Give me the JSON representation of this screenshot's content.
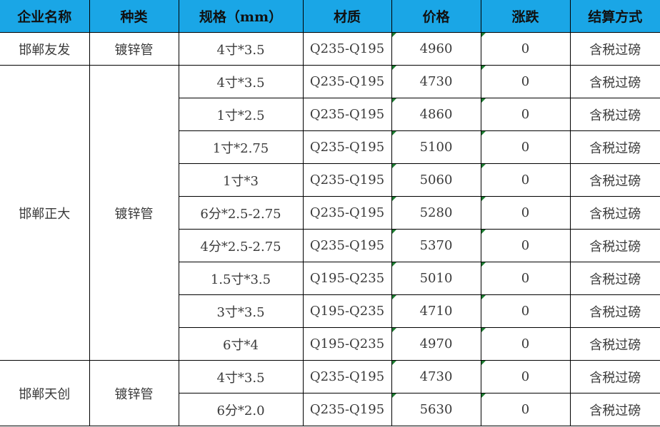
{
  "headers": [
    "企业名称",
    "种类",
    "规格（mm）",
    "材质",
    "价格",
    "涨跌",
    "结算方式"
  ],
  "groups": [
    {
      "company": "邯郸友发",
      "type": "镀锌管",
      "rows": [
        {
          "spec": "4寸*3.5",
          "material": "Q235-Q195",
          "price": "4960",
          "change": "0",
          "settlement": "含税过磅"
        }
      ]
    },
    {
      "company": "邯郸正大",
      "type": "镀锌管",
      "rows": [
        {
          "spec": "4寸*3.5",
          "material": "Q235-Q195",
          "price": "4730",
          "change": "0",
          "settlement": "含税过磅"
        },
        {
          "spec": "1寸*2.5",
          "material": "Q235-Q195",
          "price": "4860",
          "change": "0",
          "settlement": "含税过磅"
        },
        {
          "spec": "1寸*2.75",
          "material": "Q235-Q195",
          "price": "5100",
          "change": "0",
          "settlement": "含税过磅"
        },
        {
          "spec": "1寸*3",
          "material": "Q235-Q195",
          "price": "5060",
          "change": "0",
          "settlement": "含税过磅"
        },
        {
          "spec": "6分*2.5-2.75",
          "material": "Q235-Q195",
          "price": "5280",
          "change": "0",
          "settlement": "含税过磅"
        },
        {
          "spec": "4分*2.5-2.75",
          "material": "Q235-Q195",
          "price": "5370",
          "change": "0",
          "settlement": "含税过磅"
        },
        {
          "spec": "1.5寸*3.5",
          "material": "Q195-Q235",
          "price": "5010",
          "change": "0",
          "settlement": "含税过磅"
        },
        {
          "spec": "3寸*3.5",
          "material": "Q195-Q235",
          "price": "4710",
          "change": "0",
          "settlement": "含税过磅"
        },
        {
          "spec": "6寸*4",
          "material": "Q195-Q235",
          "price": "4970",
          "change": "0",
          "settlement": "含税过磅"
        }
      ]
    },
    {
      "company": "邯郸天创",
      "type": "镀锌管",
      "rows": [
        {
          "spec": "4寸*3.5",
          "material": "Q235-Q195",
          "price": "4730",
          "change": "0",
          "settlement": "含税过磅"
        },
        {
          "spec": "6分*2.0",
          "material": "Q235-Q195",
          "price": "5630",
          "change": "0",
          "settlement": "含税过磅"
        }
      ]
    }
  ],
  "colors": {
    "header_bg": "#1aa6e6",
    "error_triangle": "#1e7d32"
  }
}
